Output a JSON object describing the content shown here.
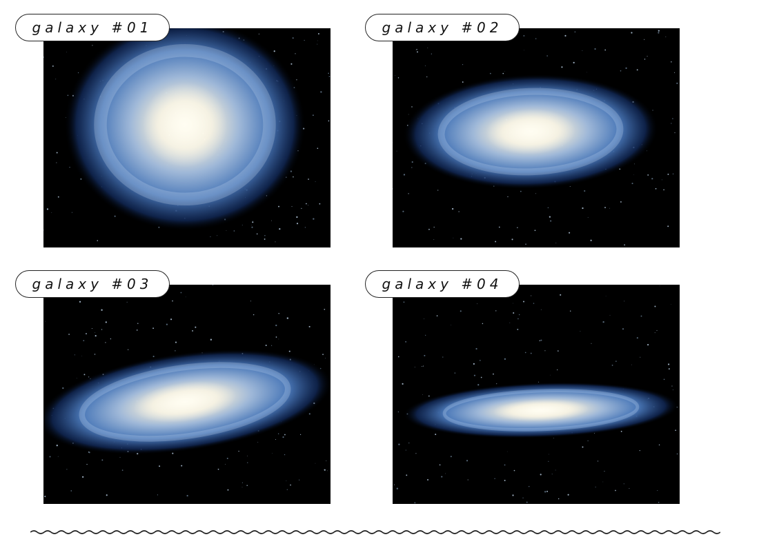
{
  "panels": [
    {
      "label": "galaxy #01",
      "image": "spiral galaxy face-on",
      "tilt": 0,
      "aspect": 0.88
    },
    {
      "label": "galaxy #02",
      "image": "spiral galaxy slightly inclined",
      "tilt": -2,
      "aspect": 0.45
    },
    {
      "label": "galaxy #03",
      "image": "spiral galaxy inclined",
      "tilt": -8,
      "aspect": 0.33
    },
    {
      "label": "galaxy #04",
      "image": "spiral galaxy nearly edge-on",
      "tilt": -2,
      "aspect": 0.2
    }
  ],
  "colors": {
    "core": "#fbf6e4",
    "arm": "#4a78b8",
    "outer": "#122a5a",
    "space": "#000000",
    "border": "#222222"
  }
}
